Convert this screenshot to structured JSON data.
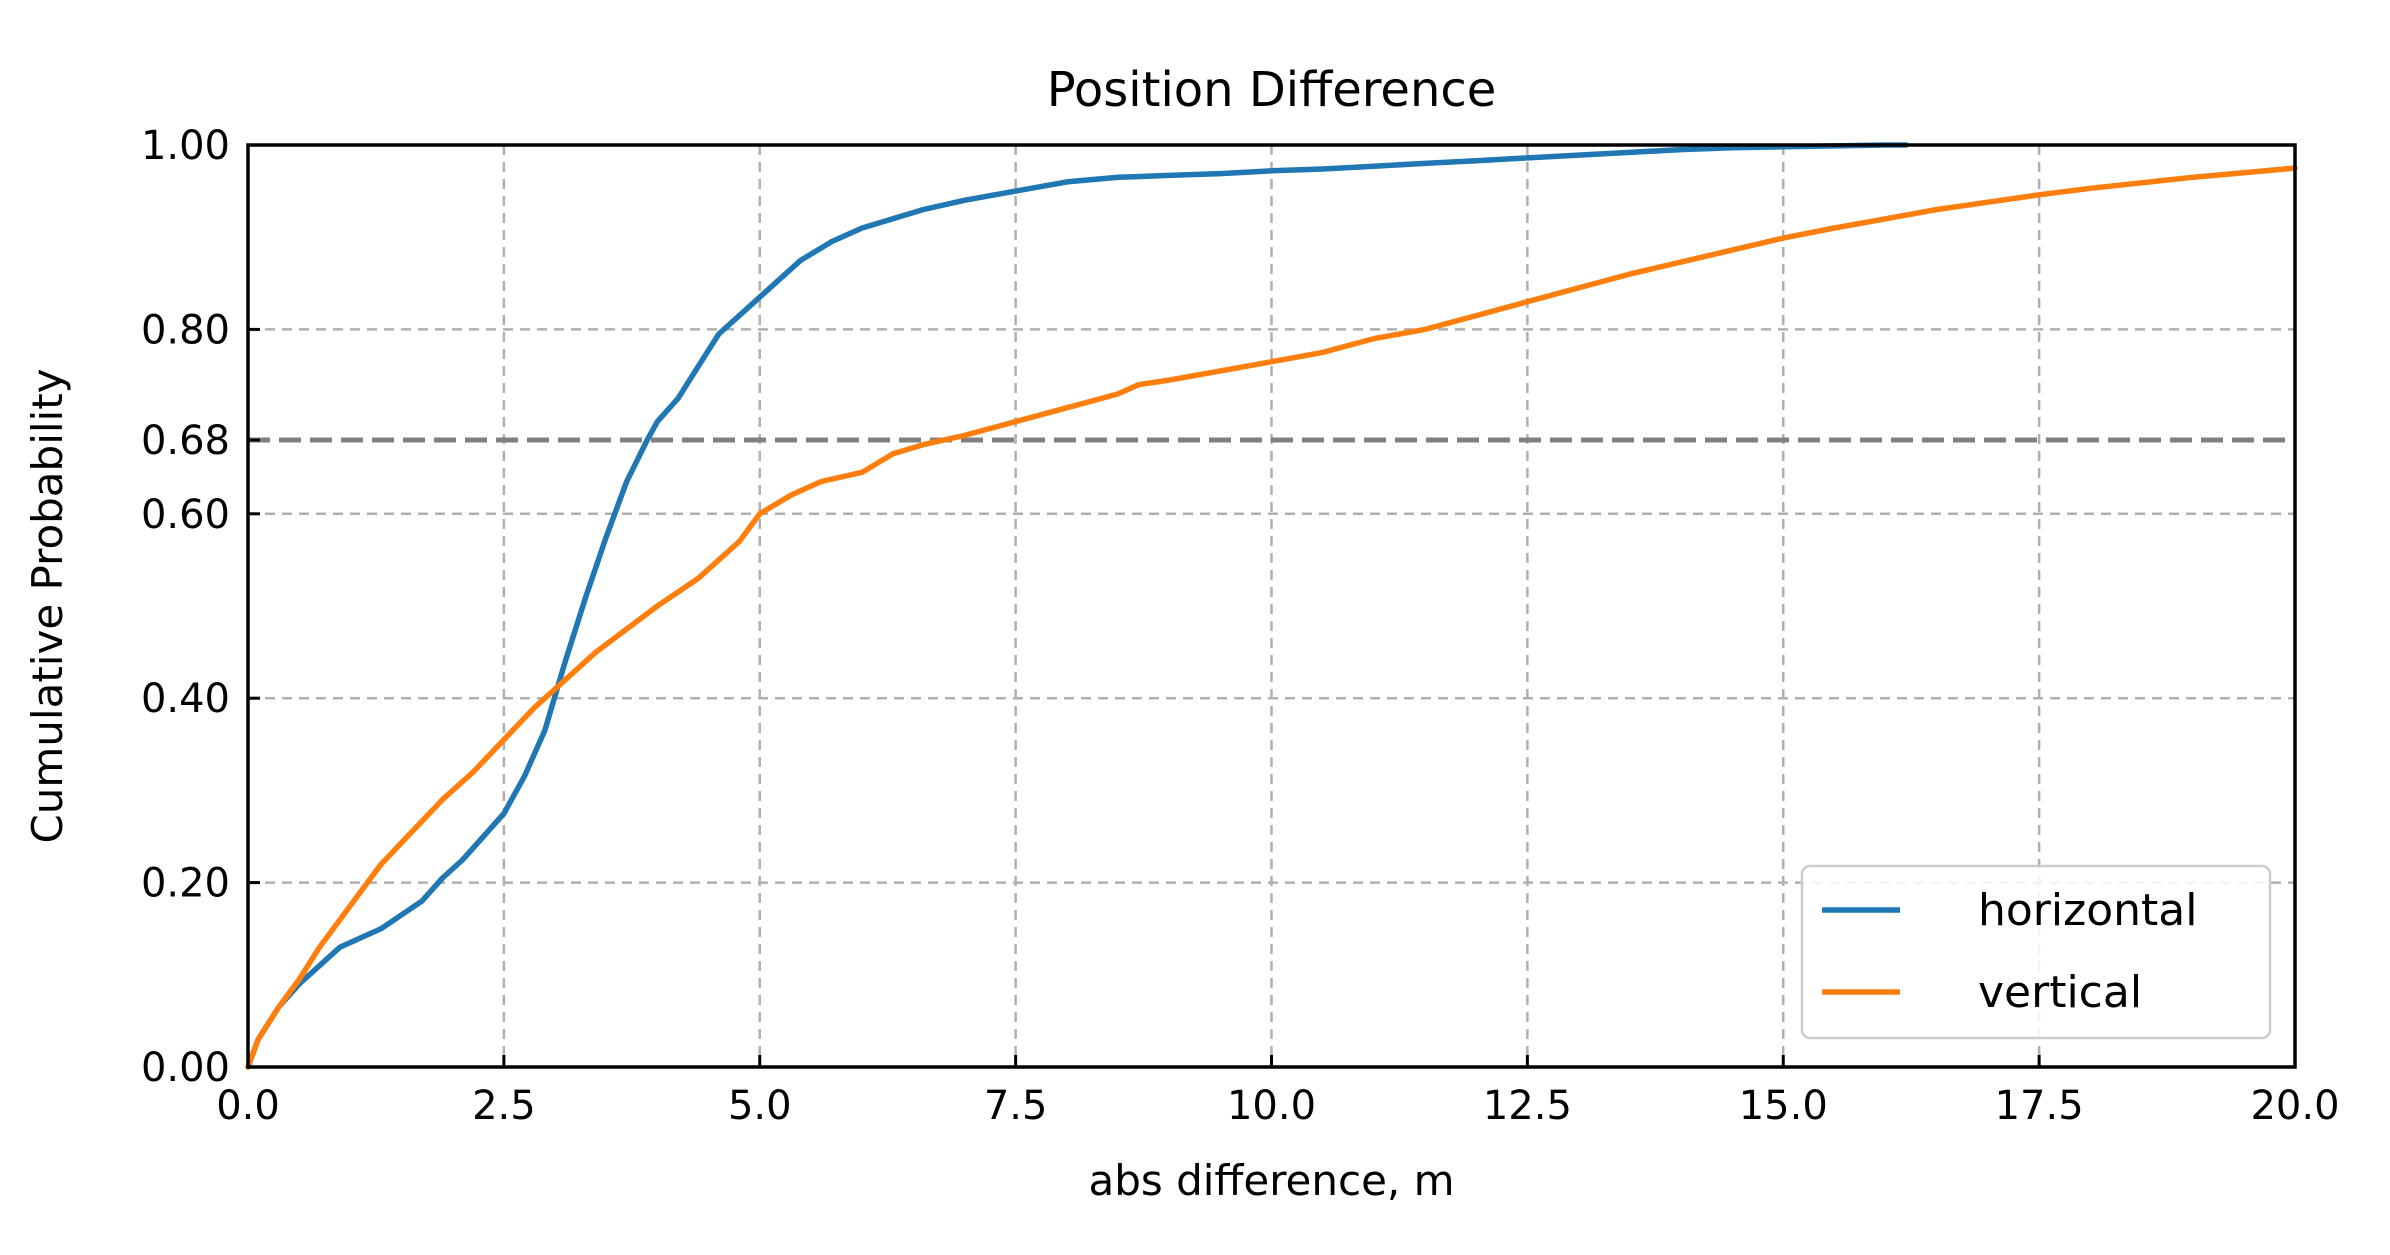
{
  "chart_data": {
    "type": "line",
    "title": "Position Difference",
    "xlabel": "abs difference, m",
    "ylabel": "Cumulative Probability",
    "xlim": [
      0,
      20
    ],
    "ylim": [
      0,
      1
    ],
    "xticks": [
      "0.0",
      "2.5",
      "5.0",
      "7.5",
      "10.0",
      "12.5",
      "15.0",
      "17.5",
      "20.0"
    ],
    "yticks": [
      "0.00",
      "0.20",
      "0.40",
      "0.60",
      "0.68",
      "0.80",
      "1.00"
    ],
    "grid": true,
    "reference_line": {
      "y": 0.68,
      "style": "dashed",
      "color": "#808080"
    },
    "legend": {
      "position": "lower-right"
    },
    "series": [
      {
        "name": "horizontal",
        "color": "#1f77b4",
        "x": [
          0,
          0.1,
          0.3,
          0.5,
          0.7,
          0.9,
          1.1,
          1.3,
          1.5,
          1.7,
          1.9,
          2.1,
          2.3,
          2.5,
          2.7,
          2.9,
          3.1,
          3.3,
          3.5,
          3.7,
          3.9,
          4.0,
          4.2,
          4.4,
          4.6,
          4.8,
          5.0,
          5.2,
          5.4,
          5.7,
          6.0,
          6.3,
          6.6,
          7.0,
          7.5,
          8.0,
          8.5,
          9.0,
          9.5,
          10.0,
          10.5,
          11.0,
          11.5,
          12.0,
          12.5,
          13.0,
          13.5,
          14.0,
          14.5,
          15.0,
          15.5,
          16.0,
          16.2
        ],
        "y": [
          0.0,
          0.03,
          0.065,
          0.09,
          0.11,
          0.13,
          0.14,
          0.15,
          0.165,
          0.18,
          0.205,
          0.225,
          0.25,
          0.275,
          0.315,
          0.365,
          0.44,
          0.51,
          0.575,
          0.635,
          0.68,
          0.7,
          0.725,
          0.76,
          0.795,
          0.815,
          0.835,
          0.855,
          0.875,
          0.895,
          0.91,
          0.92,
          0.93,
          0.94,
          0.95,
          0.96,
          0.965,
          0.967,
          0.969,
          0.972,
          0.974,
          0.977,
          0.98,
          0.983,
          0.986,
          0.989,
          0.992,
          0.995,
          0.997,
          0.998,
          0.999,
          1.0,
          1.0
        ]
      },
      {
        "name": "vertical",
        "color": "#ff7f0e",
        "x": [
          0,
          0.1,
          0.3,
          0.5,
          0.7,
          0.9,
          1.1,
          1.3,
          1.6,
          1.9,
          2.2,
          2.5,
          2.8,
          3.1,
          3.4,
          3.7,
          4.0,
          4.4,
          4.8,
          5.0,
          5.3,
          5.6,
          6.0,
          6.3,
          6.6,
          7.0,
          7.5,
          8.0,
          8.5,
          8.7,
          9.0,
          9.5,
          10.0,
          10.5,
          11.0,
          11.5,
          12.0,
          12.5,
          13.0,
          13.5,
          14.0,
          14.5,
          15.0,
          15.5,
          16.0,
          16.5,
          17.0,
          17.5,
          18.0,
          18.5,
          19.0,
          19.5,
          20.0
        ],
        "y": [
          0.0,
          0.03,
          0.065,
          0.095,
          0.13,
          0.16,
          0.19,
          0.22,
          0.255,
          0.29,
          0.32,
          0.355,
          0.39,
          0.42,
          0.45,
          0.475,
          0.5,
          0.53,
          0.57,
          0.6,
          0.62,
          0.635,
          0.645,
          0.665,
          0.675,
          0.685,
          0.7,
          0.715,
          0.73,
          0.74,
          0.745,
          0.755,
          0.765,
          0.775,
          0.79,
          0.8,
          0.815,
          0.83,
          0.845,
          0.86,
          0.873,
          0.886,
          0.899,
          0.91,
          0.92,
          0.93,
          0.938,
          0.946,
          0.953,
          0.959,
          0.965,
          0.97,
          0.975
        ]
      }
    ]
  }
}
